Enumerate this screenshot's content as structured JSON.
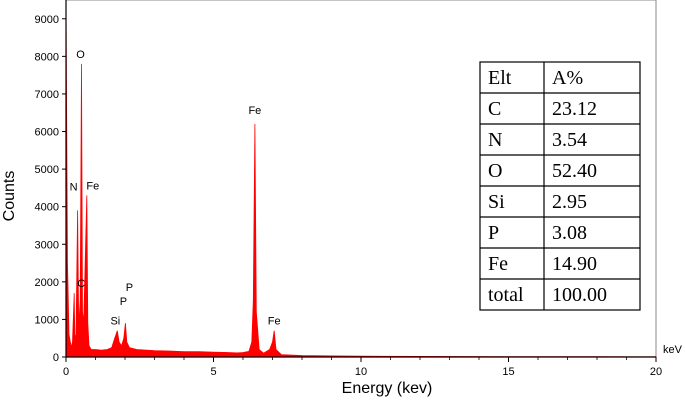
{
  "chart_data": {
    "type": "line",
    "title": "",
    "xlabel": "Energy (kev)",
    "ylabel": "Counts",
    "x_unit": "keV",
    "xlim": [
      0,
      20
    ],
    "ylim": [
      0,
      9500
    ],
    "x_ticks": [
      0,
      5,
      10,
      15,
      20
    ],
    "y_ticks": [
      0,
      1000,
      2000,
      3000,
      4000,
      5000,
      6000,
      7000,
      8000,
      9000
    ],
    "grid": false,
    "legend": "none",
    "series_color": "#ff0000",
    "series": [
      {
        "x": [
          0,
          0.05,
          0.1,
          0.18,
          0.22,
          0.277,
          0.3,
          0.34,
          0.392,
          0.43,
          0.48,
          0.525,
          0.56,
          0.6,
          0.64,
          0.705,
          0.74,
          0.78,
          0.85,
          1.0,
          1.2,
          1.4,
          1.55,
          1.65,
          1.74,
          1.8,
          1.88,
          1.96,
          2.013,
          2.06,
          2.15,
          2.4,
          3.0,
          3.5,
          4.0,
          4.5,
          5.0,
          5.5,
          5.8,
          6.0,
          6.2,
          6.3,
          6.35,
          6.403,
          6.45,
          6.55,
          6.7,
          6.9,
          7.0,
          7.058,
          7.12,
          7.3,
          8.0,
          9.0,
          10.0,
          12.0,
          15.0,
          18.0,
          20.0
        ],
        "y": [
          9500,
          2500,
          600,
          250,
          400,
          1700,
          600,
          500,
          3900,
          800,
          1500,
          7800,
          1200,
          900,
          2200,
          4300,
          900,
          300,
          200,
          200,
          180,
          200,
          250,
          500,
          700,
          400,
          300,
          500,
          900,
          400,
          250,
          200,
          170,
          160,
          140,
          140,
          130,
          120,
          110,
          120,
          150,
          400,
          1500,
          6200,
          1200,
          200,
          100,
          200,
          400,
          700,
          200,
          60,
          40,
          30,
          20,
          15,
          10,
          8,
          5
        ]
      }
    ],
    "annotations": [
      {
        "label": "C",
        "x": 0.277,
        "y": 1700
      },
      {
        "label": "N",
        "x": 0.392,
        "y": 3900
      },
      {
        "label": "O",
        "x": 0.525,
        "y": 7800
      },
      {
        "label": "Fe",
        "x": 0.705,
        "y": 4300
      },
      {
        "label": "Si",
        "x": 1.74,
        "y": 700
      },
      {
        "label": "P",
        "x": 2.013,
        "y": 900
      },
      {
        "label": "P",
        "x": 2.013,
        "y": 900
      },
      {
        "label": "Fe",
        "x": 6.403,
        "y": 6200
      },
      {
        "label": "Fe",
        "x": 7.058,
        "y": 700
      }
    ],
    "table": {
      "headers": [
        "Elt",
        "A%"
      ],
      "rows": [
        [
          "C",
          "23.12"
        ],
        [
          "N",
          "3.54"
        ],
        [
          "O",
          "52.40"
        ],
        [
          "Si",
          "2.95"
        ],
        [
          "P",
          "3.08"
        ],
        [
          "Fe",
          "14.90"
        ],
        [
          "total",
          "100.00"
        ]
      ]
    }
  }
}
